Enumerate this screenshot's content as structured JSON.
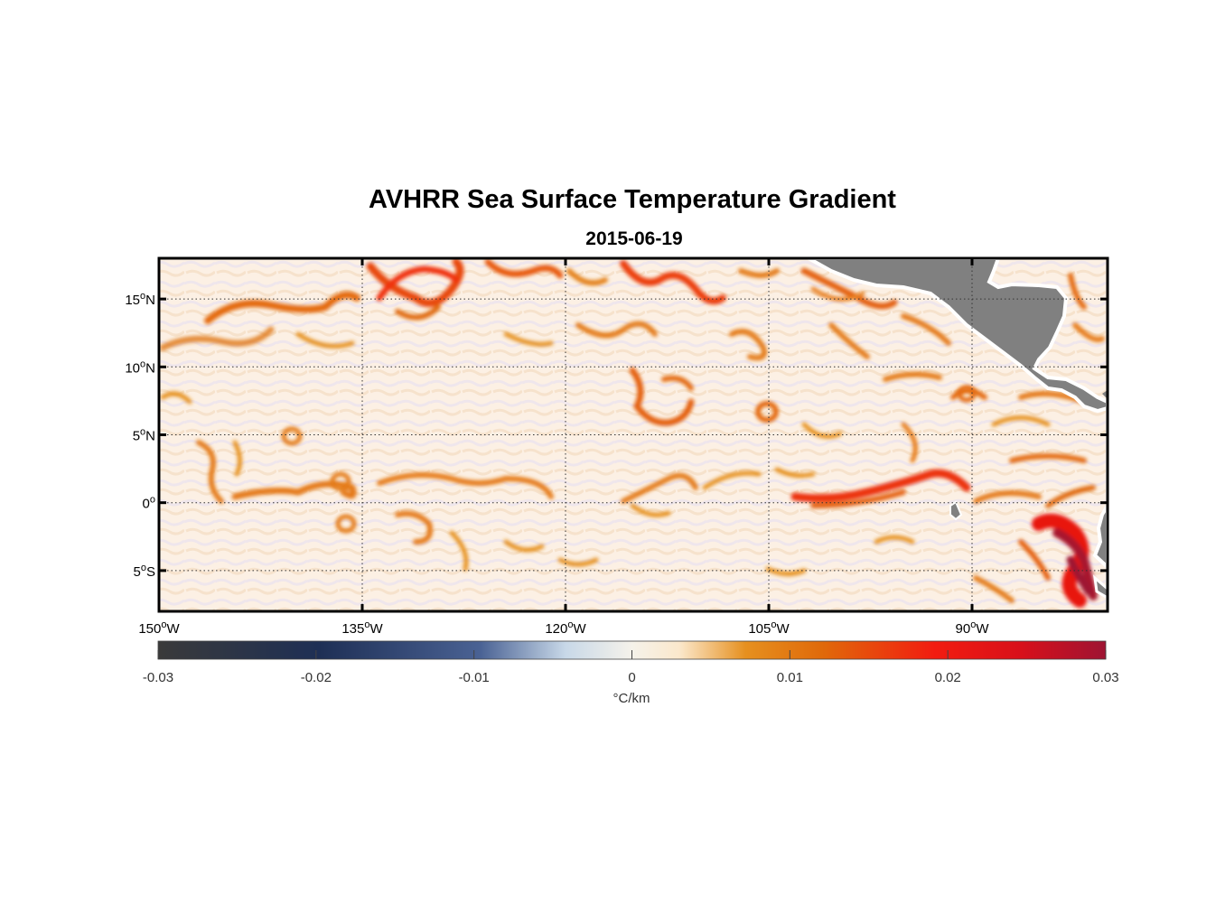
{
  "title": "AVHRR Sea Surface Temperature Gradient",
  "subtitle": "2015-06-19",
  "map": {
    "region": "Eastern Tropical Pacific",
    "lon_range": [
      -150,
      -80
    ],
    "lat_range": [
      -8,
      18
    ],
    "lon_ticks": [
      {
        "value": -150,
        "num": "150",
        "hemi": "W"
      },
      {
        "value": -135,
        "num": "135",
        "hemi": "W"
      },
      {
        "value": -120,
        "num": "120",
        "hemi": "W"
      },
      {
        "value": -105,
        "num": "105",
        "hemi": "W"
      },
      {
        "value": -90,
        "num": "90",
        "hemi": "W"
      }
    ],
    "lat_ticks": [
      {
        "value": 15,
        "num": "15",
        "hemi": "N"
      },
      {
        "value": 10,
        "num": "10",
        "hemi": "N"
      },
      {
        "value": 5,
        "num": "5",
        "hemi": "N"
      },
      {
        "value": 0,
        "num": "0",
        "hemi": ""
      },
      {
        "value": -5,
        "num": "5",
        "hemi": "S"
      }
    ],
    "land_color": "#808080",
    "ocean_background_color": "#fbeee0",
    "gridlines": "dotted"
  },
  "colorbar": {
    "min": -0.03,
    "max": 0.03,
    "ticks": [
      "-0.03",
      "-0.02",
      "-0.01",
      "0",
      "0.01",
      "0.02",
      "0.03"
    ],
    "units_label": "°C/km",
    "colors": [
      "#3a3a3a",
      "#1e2f55",
      "#4a6294",
      "#c8d8e8",
      "#fbeee0",
      "#e07a10",
      "#f02010",
      "#a01230"
    ]
  }
}
